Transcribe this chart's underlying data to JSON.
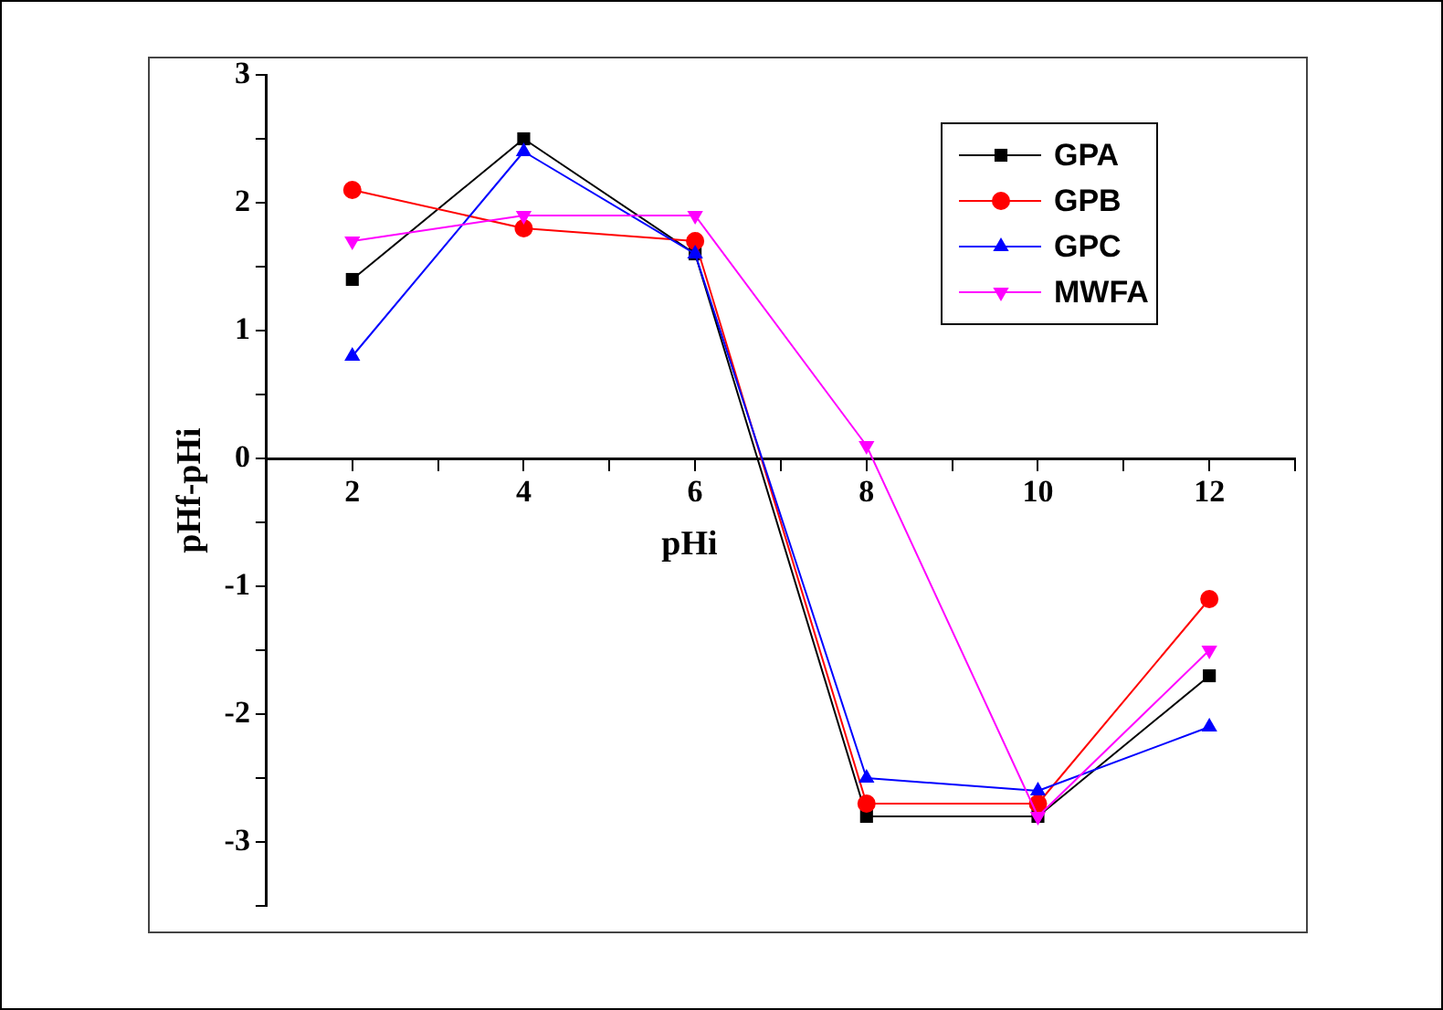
{
  "chart_data": {
    "type": "line",
    "xlabel": "pHi",
    "ylabel": "pHf-pHi",
    "x": [
      2,
      4,
      6,
      8,
      10,
      12
    ],
    "series": [
      {
        "name": "GPA",
        "color": "#000000",
        "marker": "square",
        "values": [
          1.4,
          2.5,
          1.6,
          -2.8,
          -2.8,
          -1.7
        ]
      },
      {
        "name": "GPB",
        "color": "#ff0000",
        "marker": "circle",
        "values": [
          2.1,
          1.8,
          1.7,
          -2.7,
          -2.7,
          -1.1
        ]
      },
      {
        "name": "GPC",
        "color": "#0000ff",
        "marker": "triangle",
        "values": [
          0.8,
          2.4,
          1.6,
          -2.5,
          -2.6,
          -2.1
        ]
      },
      {
        "name": "MWFA",
        "color": "#ff00ff",
        "marker": "triangle-down",
        "values": [
          1.7,
          1.9,
          1.9,
          0.1,
          -2.8,
          -1.5
        ]
      }
    ],
    "xlim": [
      1,
      13
    ],
    "xticks": [
      {
        "value": 1,
        "label": null
      },
      2,
      {
        "value": 3,
        "label": null
      },
      4,
      {
        "value": 5,
        "label": null
      },
      6,
      {
        "value": 7,
        "label": null
      },
      8,
      {
        "value": 9,
        "label": null
      },
      10,
      {
        "value": 11,
        "label": null
      },
      12,
      {
        "value": 13,
        "label": null
      }
    ],
    "ylim": [
      -3.5,
      3
    ],
    "yticks": [
      {
        "value": -3.5,
        "label": null
      },
      -3,
      {
        "value": -2.5,
        "label": null
      },
      -2,
      {
        "value": -1.5,
        "label": null
      },
      -1,
      {
        "value": -0.5,
        "label": null
      },
      0,
      {
        "value": 0.5,
        "label": null
      },
      1,
      {
        "value": 1.5,
        "label": null
      },
      2,
      {
        "value": 2.5,
        "label": null
      },
      3
    ],
    "grid": false,
    "legend": "top right",
    "line_style": "solid"
  }
}
